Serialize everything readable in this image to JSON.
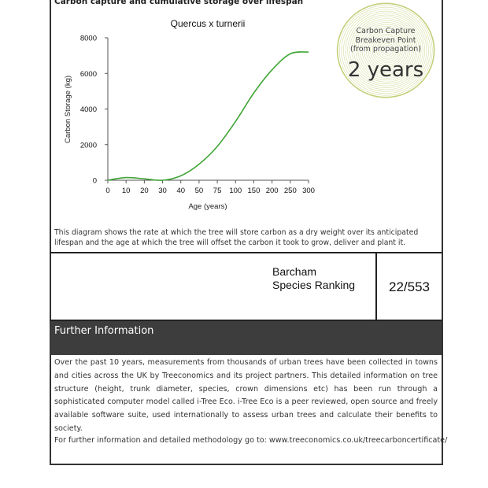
{
  "section_title": "Carbon capture and cumulative storage over lifespan",
  "chart_data": {
    "type": "line",
    "title": "Quercus x turnerii",
    "xlabel": "Age (years)",
    "ylabel": "Carbon Storage (kg)",
    "categories": [
      "0",
      "10",
      "20",
      "30",
      "40",
      "50",
      "75",
      "100",
      "150",
      "200",
      "250",
      "300"
    ],
    "values": [
      0,
      150,
      80,
      0,
      250,
      900,
      1900,
      3300,
      4900,
      6200,
      7100,
      7200
    ],
    "ylim": [
      0,
      8000
    ],
    "yticks": [
      0,
      2000,
      4000,
      6000,
      8000
    ],
    "grid": false,
    "line_color": "#3fa535"
  },
  "badge": {
    "line1": "Carbon Capture",
    "line2": "Breakeven Point",
    "line3": "(from propagation)",
    "value": "2 years",
    "ring_color": "#c5cf7a"
  },
  "description": "This diagram shows the rate at which the tree will store carbon as a dry weight over its anticipated lifespan and the age at which the tree will offset the carbon it took to grow, deliver and plant it.",
  "ranking": {
    "line1": "Barcham",
    "line2": "Species Ranking",
    "value": "22/553"
  },
  "further": {
    "heading": "Further Information",
    "body": "Over the past 10 years, measurements from thousands of urban trees have been collected in towns and cities across the UK by Treeconomics and its project partners. This detailed information on tree structure (height, trunk diameter, species, crown dimensions etc) has been run through a sophisticated computer model called i-Tree Eco. i-Tree Eco is a peer reviewed, open source and freely available software suite, used internationally to assess urban trees and calculate their benefits to society.",
    "link_text": "For further information and detailed methodology go to: www.treeconomics.co.uk/treecarboncertificate/"
  }
}
